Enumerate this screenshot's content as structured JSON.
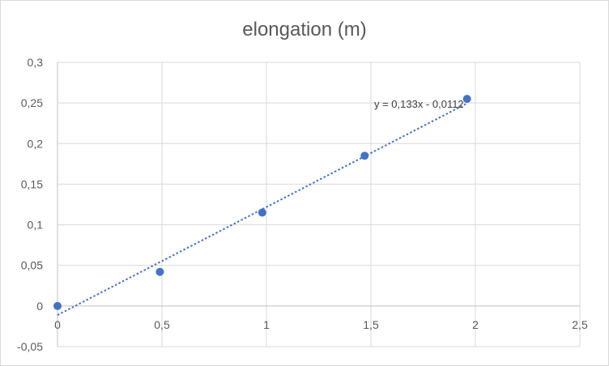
{
  "chart_data": {
    "type": "scatter",
    "title": "elongation (m)",
    "x": [
      0,
      0.49,
      0.98,
      1.47,
      1.96
    ],
    "y": [
      0,
      0.042,
      0.115,
      0.185,
      0.255
    ],
    "xlim": [
      0,
      2.5
    ],
    "ylim": [
      -0.05,
      0.3
    ],
    "xticks": [
      0,
      0.5,
      1,
      1.5,
      2,
      2.5
    ],
    "xtick_labels": [
      "0",
      "0,5",
      "1",
      "1,5",
      "2",
      "2,5"
    ],
    "yticks": [
      -0.05,
      0,
      0.05,
      0.1,
      0.15,
      0.2,
      0.25,
      0.3
    ],
    "ytick_labels": [
      "-0,05",
      "0",
      "0,05",
      "0,1",
      "0,15",
      "0,2",
      "0,25",
      "0,3"
    ],
    "grid": true,
    "trendline": {
      "type": "linear",
      "slope": 0.133,
      "intercept": -0.0112,
      "equation": "y = 0,133x - 0,0112"
    },
    "marker_color": "#4472c4",
    "trendline_color": "#4472c4",
    "grid_color": "#d9d9d9"
  }
}
